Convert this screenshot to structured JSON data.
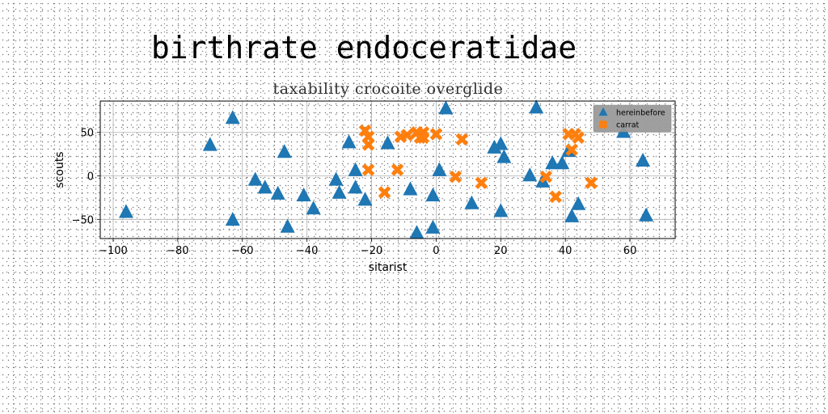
{
  "chart_data": {
    "type": "scatter",
    "suptitle": "birthrate endoceratidae",
    "title": "taxability crocoite overglide",
    "xlabel": "sitarist",
    "ylabel": "scouts",
    "xlim": [
      -104,
      74
    ],
    "ylim": [
      -72,
      86
    ],
    "xticks": [
      -100,
      -80,
      -60,
      -40,
      -20,
      0,
      20,
      40,
      60
    ],
    "yticks": [
      -50,
      0,
      50
    ],
    "grid": true,
    "legend_position": "upper right",
    "series": [
      {
        "name": "hereinbefore",
        "marker": "triangle",
        "color": "#1f77b4",
        "points": [
          [
            -96,
            -42
          ],
          [
            -70,
            35
          ],
          [
            -63,
            66
          ],
          [
            -63,
            -51
          ],
          [
            -56,
            -5
          ],
          [
            -53,
            -14
          ],
          [
            -49,
            -21
          ],
          [
            -47,
            27
          ],
          [
            -46,
            -59
          ],
          [
            -41,
            -23
          ],
          [
            -38,
            -38
          ],
          [
            -31,
            -5
          ],
          [
            -30,
            -20
          ],
          [
            -27,
            38
          ],
          [
            -25,
            -14
          ],
          [
            -25,
            6
          ],
          [
            -22,
            -28
          ],
          [
            -15,
            37
          ],
          [
            -8,
            -16
          ],
          [
            -6,
            -66
          ],
          [
            -1,
            -23
          ],
          [
            -1,
            -60
          ],
          [
            1,
            6
          ],
          [
            3,
            77
          ],
          [
            11,
            -32
          ],
          [
            18,
            32
          ],
          [
            20,
            36
          ],
          [
            20,
            -41
          ],
          [
            21,
            21
          ],
          [
            29,
            0
          ],
          [
            31,
            78
          ],
          [
            33,
            -7
          ],
          [
            36,
            14
          ],
          [
            39,
            14
          ],
          [
            41,
            28
          ],
          [
            42,
            -47
          ],
          [
            44,
            -33
          ],
          [
            58,
            50
          ],
          [
            64,
            17
          ],
          [
            65,
            -46
          ]
        ]
      },
      {
        "name": "carrat",
        "marker": "x",
        "color": "#ff7f0e",
        "points": [
          [
            -22,
            52
          ],
          [
            -21,
            45
          ],
          [
            -21,
            36
          ],
          [
            -21,
            7
          ],
          [
            -16,
            -19
          ],
          [
            -12,
            7
          ],
          [
            -11,
            45
          ],
          [
            -9,
            47
          ],
          [
            -6,
            50
          ],
          [
            -5,
            44
          ],
          [
            -4,
            50
          ],
          [
            -4,
            44
          ],
          [
            0,
            48
          ],
          [
            6,
            -1
          ],
          [
            8,
            42
          ],
          [
            14,
            -8
          ],
          [
            34,
            -1
          ],
          [
            37,
            -24
          ],
          [
            41,
            48
          ],
          [
            42,
            30
          ],
          [
            43,
            48
          ],
          [
            44,
            44
          ],
          [
            48,
            -8
          ]
        ]
      }
    ]
  }
}
